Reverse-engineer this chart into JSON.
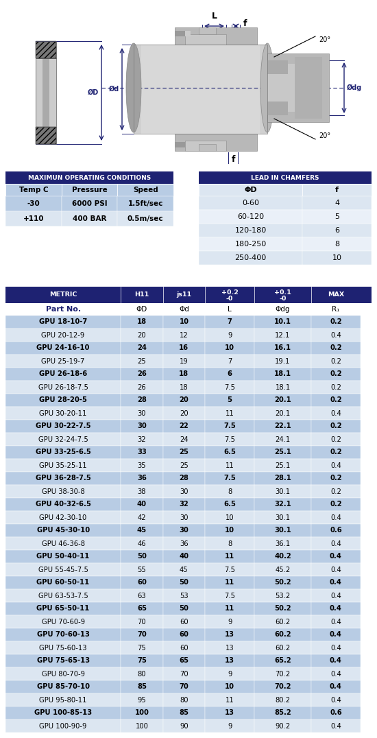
{
  "bg_color": "#ffffff",
  "dark_blue": "#1e2272",
  "light_blue": "#b8cce4",
  "mid_blue": "#c5d5e8",
  "header_text_color": "#ffffff",
  "op_conditions_header": "MAXIMUN OPERATING CONDITIONS",
  "op_conditions_col_headers": [
    "Temp C",
    "Pressure",
    "Speed"
  ],
  "op_conditions_data": [
    [
      "-30",
      "6000 PSI",
      "1.5ft/sec"
    ],
    [
      "+110",
      "400 BAR",
      "0.5m/sec"
    ]
  ],
  "chamfer_header": "LEAD IN CHAMFERS",
  "chamfer_col_headers": [
    "ΦD",
    "f"
  ],
  "chamfer_data": [
    [
      "0-60",
      "4"
    ],
    [
      "6 0-120",
      "5"
    ],
    [
      "1 2 0-1 8 0",
      "6"
    ],
    [
      "1 8 0-2 5 0",
      "8"
    ],
    [
      "2 5 0-4 0 0",
      "10"
    ]
  ],
  "main_table_headers": [
    "METRIC",
    "H11",
    "js11",
    "+0.2\n-0",
    "+0.1\n-0",
    "MAX"
  ],
  "main_table_sub_headers": [
    "Part No.",
    "ΦD",
    "Φd",
    "L",
    "Φdg",
    "R₁"
  ],
  "main_table_data": [
    [
      "GPU 18-10-7",
      "18",
      "10",
      "7",
      "10.1",
      "0.2"
    ],
    [
      "GPU 20-12-9",
      "20",
      "12",
      "9",
      "12.1",
      "0.4"
    ],
    [
      "GPU 24-16-10",
      "24",
      "16",
      "10",
      "16.1",
      "0.2"
    ],
    [
      "GPU 25-19-7",
      "25",
      "19",
      "7",
      "19.1",
      "0.2"
    ],
    [
      "GPU 26-18-6",
      "26",
      "18",
      "6",
      "18.1",
      "0.2"
    ],
    [
      "GPU 26-18-7.5",
      "26",
      "18",
      "7.5",
      "18.1",
      "0.2"
    ],
    [
      "GPU 28-20-5",
      "28",
      "20",
      "5",
      "20.1",
      "0.2"
    ],
    [
      "GPU 30-20-11",
      "30",
      "20",
      "11",
      "20.1",
      "0.4"
    ],
    [
      "GPU 30-22-7.5",
      "30",
      "22",
      "7.5",
      "22.1",
      "0.2"
    ],
    [
      "GPU 32-24-7.5",
      "32",
      "24",
      "7.5",
      "24.1",
      "0.2"
    ],
    [
      "GPU 33-25-6.5",
      "33",
      "25",
      "6.5",
      "25.1",
      "0.2"
    ],
    [
      "GPU 35-25-11",
      "35",
      "25",
      "11",
      "25.1",
      "0.4"
    ],
    [
      "GPU 36-28-7.5",
      "36",
      "28",
      "7.5",
      "28.1",
      "0.2"
    ],
    [
      "GPU 38-30-8",
      "38",
      "30",
      "8",
      "30.1",
      "0.2"
    ],
    [
      "GPU 40-32-6.5",
      "40",
      "32",
      "6.5",
      "32.1",
      "0.2"
    ],
    [
      "GPU 42-30-10",
      "42",
      "30",
      "10",
      "30.1",
      "0.4"
    ],
    [
      "GPU 45-30-10",
      "45",
      "30",
      "10",
      "30.1",
      "0.6"
    ],
    [
      "GPU 46-36-8",
      "46",
      "36",
      "8",
      "36.1",
      "0.4"
    ],
    [
      "GPU 50-40-11",
      "50",
      "40",
      "11",
      "40.2",
      "0.4"
    ],
    [
      "GPU 55-45-7.5",
      "55",
      "45",
      "7.5",
      "45.2",
      "0.4"
    ],
    [
      "GPU 60-50-11",
      "60",
      "50",
      "11",
      "50.2",
      "0.4"
    ],
    [
      "GPU 63-53-7.5",
      "63",
      "53",
      "7.5",
      "53.2",
      "0.4"
    ],
    [
      "GPU 65-50-11",
      "65",
      "50",
      "11",
      "50.2",
      "0.4"
    ],
    [
      "GPU 70-60-9",
      "70",
      "60",
      "9",
      "60.2",
      "0.4"
    ],
    [
      "GPU 70-60-13",
      "70",
      "60",
      "13",
      "60.2",
      "0.4"
    ],
    [
      "GPU 75-60-13",
      "75",
      "60",
      "13",
      "60.2",
      "0.4"
    ],
    [
      "GPU 75-65-13",
      "75",
      "65",
      "13",
      "65.2",
      "0.4"
    ],
    [
      "GPU 80-70-9",
      "80",
      "70",
      "9",
      "70.2",
      "0.4"
    ],
    [
      "GPU 85-70-10",
      "85",
      "70",
      "10",
      "70.2",
      "0.4"
    ],
    [
      "GPU 95-80-11",
      "95",
      "80",
      "11",
      "80.2",
      "0.4"
    ],
    [
      "GPU 100-85-13",
      "100",
      "85",
      "13",
      "85.2",
      "0.6"
    ],
    [
      "GPU 100-90-9",
      "100",
      "90",
      "9",
      "90.2",
      "0.4"
    ]
  ],
  "bold_rows": [
    0,
    2,
    4,
    6,
    8,
    10,
    12,
    14,
    16,
    18,
    20,
    22,
    24,
    26,
    28,
    30
  ]
}
